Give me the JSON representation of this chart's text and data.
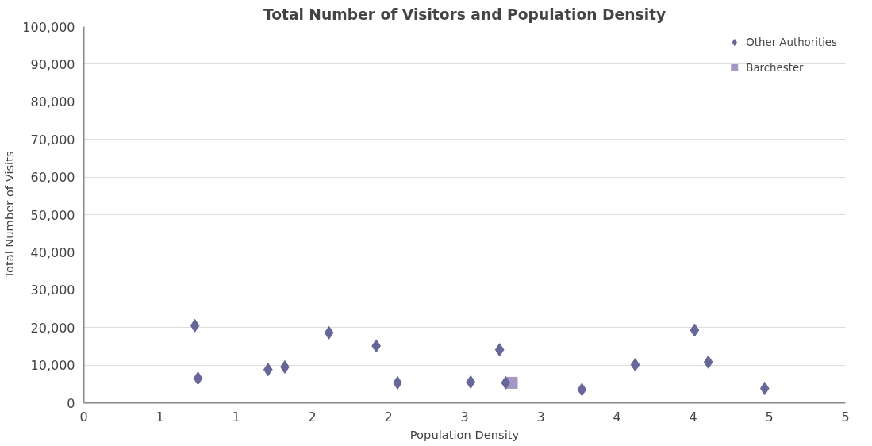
{
  "chart_data": {
    "type": "scatter",
    "title": "Total Number of Visitors and Population Density",
    "xlabel": "Population Density",
    "ylabel": "Total Number of Visits",
    "xlim": [
      0,
      5
    ],
    "xticks": [
      0,
      {
        "value": 0.5,
        "label": "1"
      },
      1,
      {
        "value": 1.5,
        "label": "2"
      },
      2,
      {
        "value": 2.5,
        "label": "3"
      },
      3,
      {
        "value": 3.5,
        "label": "4"
      },
      4,
      {
        "value": 4.5,
        "label": "5"
      },
      5
    ],
    "ylim": [
      0,
      100000
    ],
    "yticks": [
      {
        "value": 0,
        "label": "0"
      },
      {
        "value": 10000,
        "label": "10,000"
      },
      {
        "value": 20000,
        "label": "20,000"
      },
      {
        "value": 30000,
        "label": "30,000"
      },
      {
        "value": 40000,
        "label": "40,000"
      },
      {
        "value": 50000,
        "label": "50,000"
      },
      {
        "value": 60000,
        "label": "60,000"
      },
      {
        "value": 70000,
        "label": "70,000"
      },
      {
        "value": 80000,
        "label": "80,000"
      },
      {
        "value": 90000,
        "label": "90,000"
      },
      {
        "value": 100000,
        "label": "100,000"
      }
    ],
    "grid": "y",
    "legend": "top right",
    "series": [
      {
        "name": "Other Authorities",
        "color": "#666699",
        "marker": "diamond",
        "x": [
          0.73,
          0.75,
          1.21,
          1.32,
          1.61,
          1.92,
          2.06,
          2.54,
          2.73,
          2.77,
          3.27,
          3.62,
          4.01,
          4.1,
          4.47
        ],
        "values": [
          20500,
          6500,
          8800,
          9500,
          18600,
          15100,
          5300,
          5500,
          14100,
          5300,
          3500,
          10100,
          19300,
          10800,
          3800
        ]
      },
      {
        "name": "Barchester",
        "color": "#a597c4",
        "marker": "square",
        "x": [
          2.81
        ],
        "values": [
          5300
        ]
      }
    ]
  }
}
